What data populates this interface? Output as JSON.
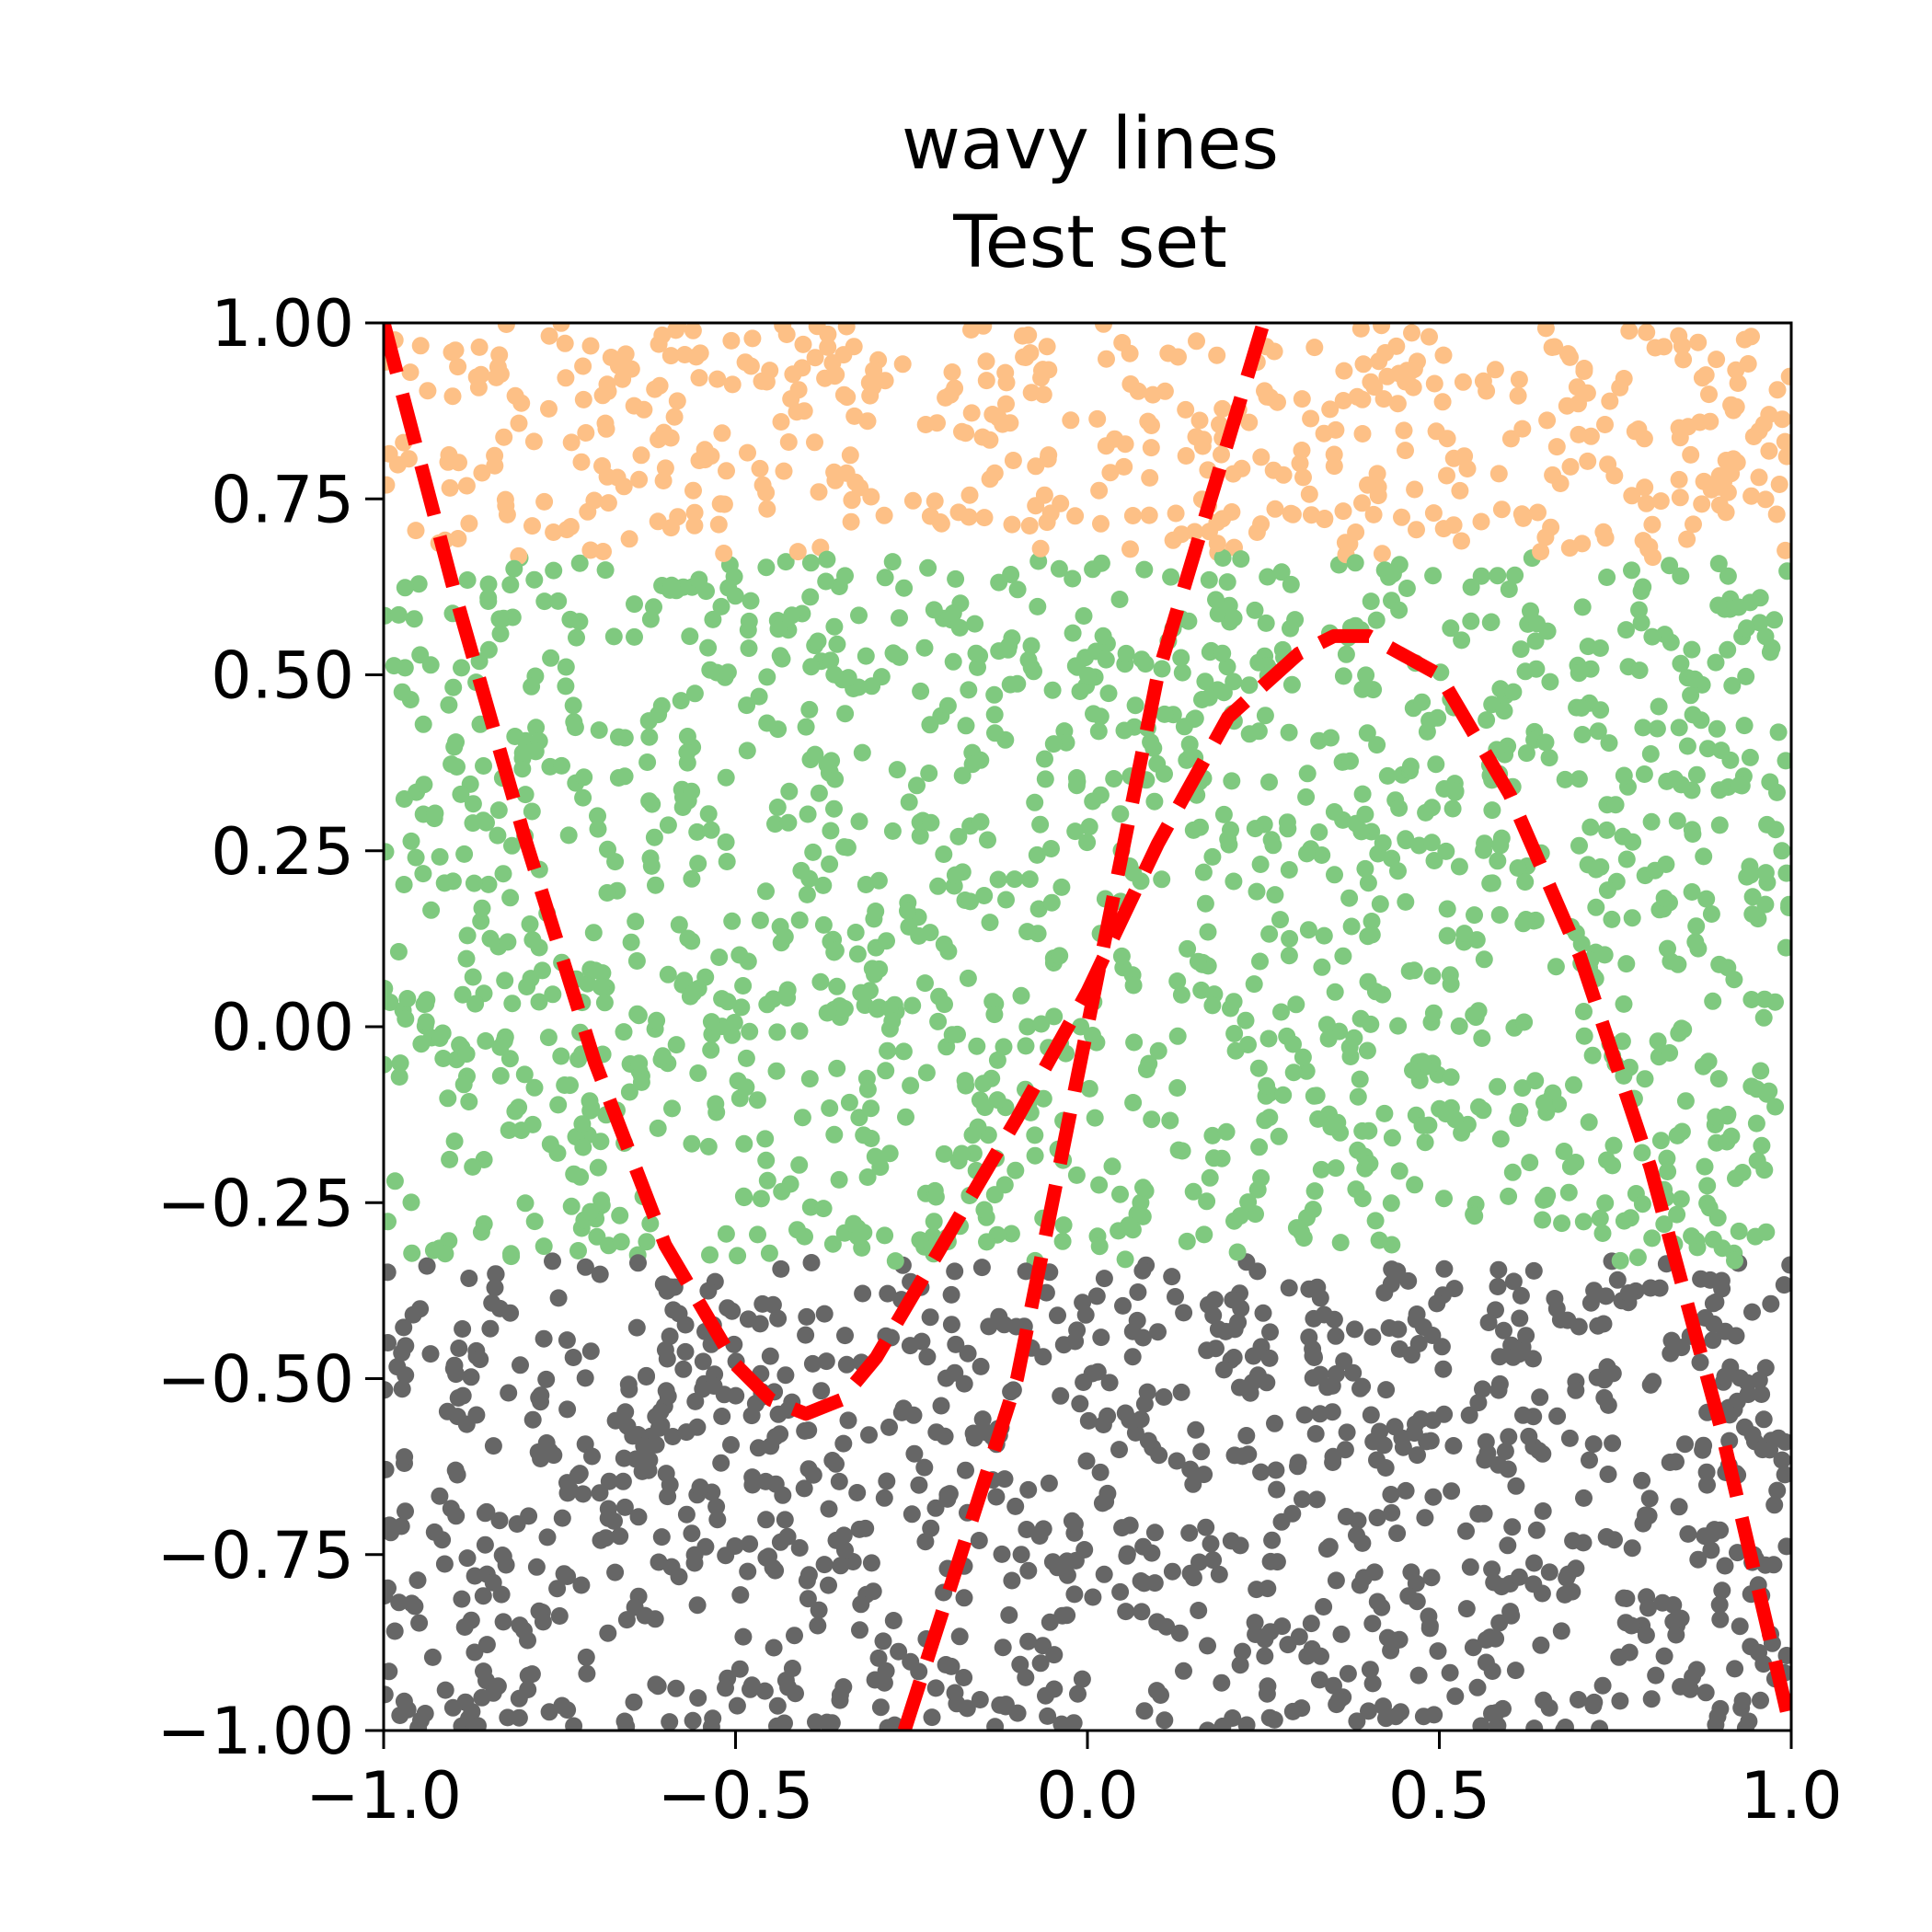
{
  "chart_data": {
    "type": "scatter",
    "title_lines": [
      "wavy lines",
      "Test set"
    ],
    "xlabel": "",
    "ylabel": "",
    "xlim": [
      -1.0,
      1.0
    ],
    "ylim": [
      -1.0,
      1.0
    ],
    "x_ticks": [
      {
        "value": -1.0,
        "label": "−1.0"
      },
      {
        "value": -0.5,
        "label": "−0.5"
      },
      {
        "value": 0.0,
        "label": "0.0"
      },
      {
        "value": 0.5,
        "label": "0.5"
      },
      {
        "value": 1.0,
        "label": "1.0"
      }
    ],
    "y_ticks": [
      {
        "value": 1.0,
        "label": "1.00"
      },
      {
        "value": 0.75,
        "label": "0.75"
      },
      {
        "value": 0.5,
        "label": "0.50"
      },
      {
        "value": 0.25,
        "label": "0.25"
      },
      {
        "value": 0.0,
        "label": "0.00"
      },
      {
        "value": -0.25,
        "label": "−0.25"
      },
      {
        "value": -0.5,
        "label": "−0.50"
      },
      {
        "value": -0.75,
        "label": "−0.75"
      },
      {
        "value": -1.0,
        "label": "−1.00"
      }
    ],
    "grid": false,
    "legend": "none",
    "point_classes": [
      {
        "color": "#fdc086",
        "y_range": [
          0.667,
          1.0
        ]
      },
      {
        "color": "#7fc97f",
        "y_range": [
          -0.333,
          0.667
        ]
      },
      {
        "color": "#666666",
        "y_range": [
          -1.0,
          -0.333
        ]
      }
    ],
    "boundary_lines": [
      {
        "color": "#ff0000",
        "style": "dashed",
        "points": [
          [
            -1.0,
            1.0
          ],
          [
            -0.9,
            0.62
          ],
          [
            -0.8,
            0.27
          ],
          [
            -0.7,
            -0.05
          ],
          [
            -0.6,
            -0.31
          ],
          [
            -0.5,
            -0.48
          ],
          [
            -0.45,
            -0.53
          ],
          [
            -0.4,
            -0.55
          ],
          [
            -0.35,
            -0.53
          ],
          [
            -0.3,
            -0.47
          ],
          [
            -0.2,
            -0.3
          ],
          [
            -0.1,
            -0.13
          ],
          [
            0.0,
            0.05
          ],
          [
            0.1,
            0.26
          ],
          [
            0.2,
            0.44
          ],
          [
            0.3,
            0.53
          ],
          [
            0.35,
            0.555
          ],
          [
            0.4,
            0.555
          ],
          [
            0.5,
            0.5
          ],
          [
            0.6,
            0.33
          ],
          [
            0.7,
            0.1
          ],
          [
            0.8,
            -0.2
          ],
          [
            0.9,
            -0.57
          ],
          [
            1.0,
            -1.0
          ]
        ]
      },
      {
        "color": "#ff0000",
        "style": "dashed",
        "points": [
          [
            -0.26,
            -1.0
          ],
          [
            -0.1,
            -0.5
          ],
          [
            0.0,
            0.0
          ],
          [
            0.1,
            0.5
          ],
          [
            0.25,
            1.0
          ]
        ]
      }
    ],
    "point_count_approx": 3000
  }
}
